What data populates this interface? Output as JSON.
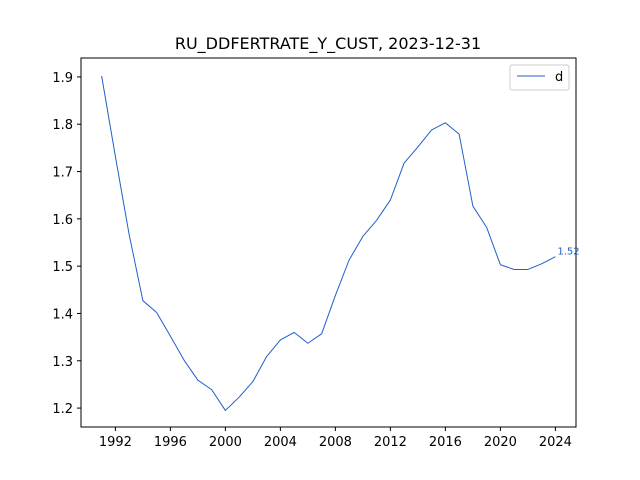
{
  "chart_data": {
    "type": "line",
    "title": "RU_DDFERTRATE_Y_CUST, 2023-12-31",
    "xlabel": "",
    "ylabel": "",
    "xlim": [
      1989.5,
      2025.5
    ],
    "ylim": [
      1.16,
      1.94
    ],
    "x_ticks": [
      1992,
      1996,
      2000,
      2004,
      2008,
      2012,
      2016,
      2020,
      2024
    ],
    "y_ticks": [
      1.2,
      1.3,
      1.4,
      1.5,
      1.6,
      1.7,
      1.8,
      1.9
    ],
    "grid": false,
    "legend": "top-right",
    "series": [
      {
        "name": "d",
        "color": "#1f5fc9",
        "x": [
          1991,
          1992,
          1993,
          1994,
          1995,
          1996,
          1997,
          1998,
          1999,
          2000,
          2001,
          2002,
          2003,
          2004,
          2005,
          2006,
          2007,
          2008,
          2009,
          2010,
          2011,
          2012,
          2013,
          2014,
          2015,
          2016,
          2017,
          2018,
          2019,
          2020,
          2021,
          2022,
          2023,
          2024
        ],
        "values": [
          1.902,
          1.732,
          1.567,
          1.427,
          1.402,
          1.352,
          1.301,
          1.259,
          1.239,
          1.195,
          1.223,
          1.256,
          1.309,
          1.344,
          1.36,
          1.337,
          1.357,
          1.438,
          1.513,
          1.563,
          1.597,
          1.64,
          1.718,
          1.752,
          1.788,
          1.803,
          1.779,
          1.627,
          1.582,
          1.503,
          1.493,
          1.493,
          1.505,
          1.52
        ]
      }
    ],
    "end_label": "1.52"
  }
}
